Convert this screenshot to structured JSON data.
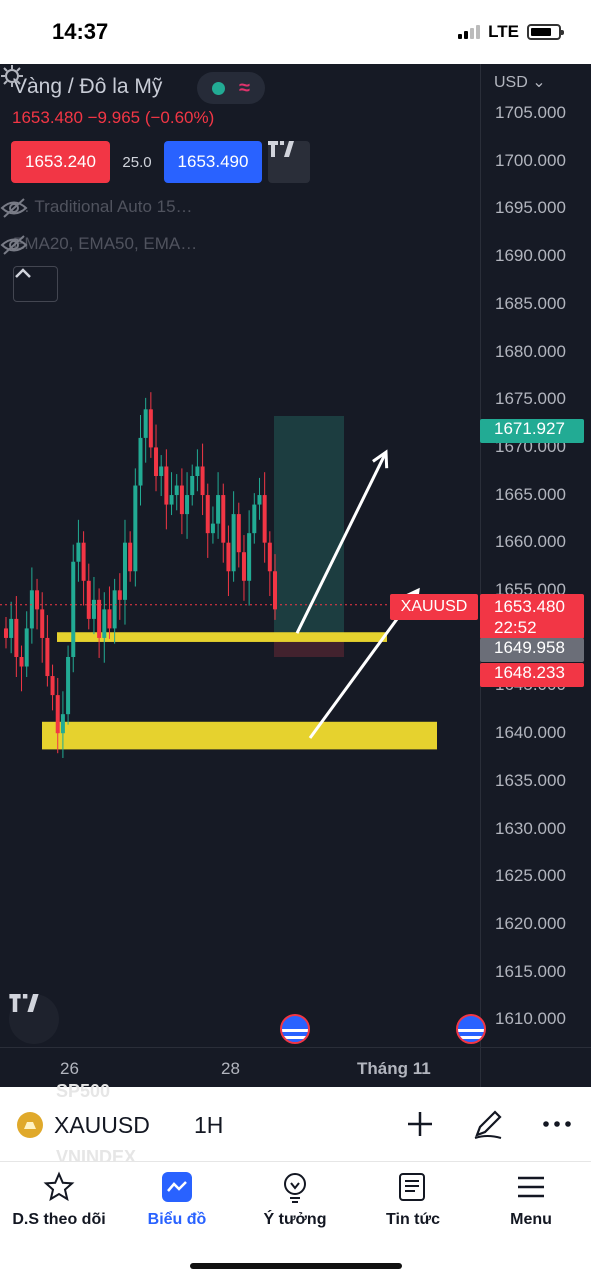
{
  "status_bar": {
    "time": "14:37",
    "network": "LTE"
  },
  "header": {
    "symbol_title": "Vàng / Đô la Mỹ",
    "price_line": "1653.480  −9.965 (−0.60%)",
    "sell_price": "1653.240",
    "spread": "25.0",
    "buy_price": "1653.490",
    "indicators": [
      "…  Traditional Auto 15…",
      "EMA20, EMA50, EMA…"
    ]
  },
  "price_axis": {
    "currency": "USD",
    "labels": [
      "1705.000",
      "1700.000",
      "1695.000",
      "1690.000",
      "1685.000",
      "1680.000",
      "1675.000",
      "1670.000",
      "1665.000",
      "1660.000",
      "1655.000",
      "1650.000",
      "1645.000",
      "1640.000",
      "1635.000",
      "1630.000",
      "1625.000",
      "1620.000",
      "1615.000",
      "1610.000"
    ]
  },
  "price_tags": {
    "top": "1671.927",
    "last_price": "1653.480",
    "countdown": "22:52",
    "mid": "1649.958",
    "low": "1648.233",
    "symbol": "XAUUSD"
  },
  "time_axis": {
    "labels": [
      "26",
      "28",
      "Tháng 11"
    ]
  },
  "colors": {
    "up": "#22ab94",
    "down": "#f23645",
    "accent": "#2962ff",
    "zone": "#e6d22e",
    "bg": "#161a25"
  },
  "chart_data": {
    "type": "candlestick",
    "ylim": [
      1605,
      1709
    ],
    "close_series": [
      1650,
      1652,
      1648,
      1647,
      1651,
      1655,
      1653,
      1650,
      1646,
      1644,
      1640,
      1642,
      1648,
      1658,
      1660,
      1656,
      1652,
      1654,
      1650,
      1653,
      1651,
      1655,
      1654,
      1660,
      1657,
      1666,
      1671,
      1674,
      1670,
      1667,
      1668,
      1664,
      1665,
      1666,
      1663,
      1665,
      1667,
      1668,
      1665,
      1661,
      1662,
      1665,
      1660,
      1657,
      1663,
      1659,
      1656,
      1661,
      1664,
      1665,
      1660,
      1657,
      1653
    ],
    "last_price": 1653.48
  },
  "toolbar": {
    "ghost_top": "SP500",
    "ghost_bottom": "VNINDEX",
    "symbol": "XAUUSD",
    "interval": "1H"
  },
  "nav": {
    "items": [
      {
        "label": "D.S theo dõi",
        "icon": "star-icon"
      },
      {
        "label": "Biểu đồ",
        "icon": "chart-icon"
      },
      {
        "label": "Ý tưởng",
        "icon": "lightbulb-icon"
      },
      {
        "label": "Tin tức",
        "icon": "news-icon"
      },
      {
        "label": "Menu",
        "icon": "menu-icon"
      }
    ]
  }
}
